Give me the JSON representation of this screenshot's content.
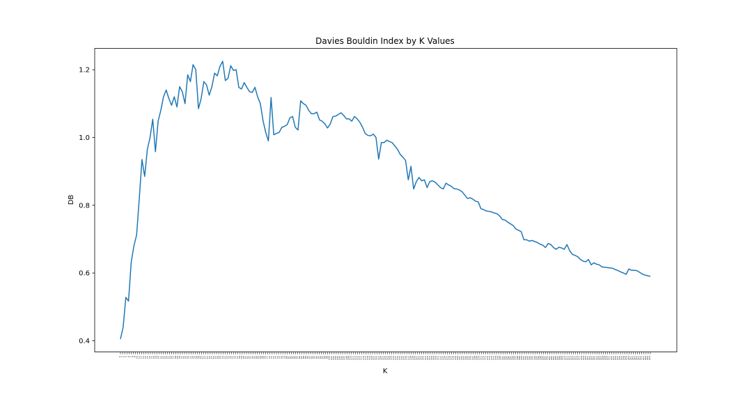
{
  "chart_data": {
    "type": "line",
    "title": "Davies Bouldin Index by K Values",
    "xlabel": "K",
    "ylabel": "DB",
    "x_start": 2,
    "x_end": 250,
    "ylim": [
      0.367,
      1.263
    ],
    "yticks": [
      0.4,
      0.6,
      0.8,
      1.0,
      1.2
    ],
    "ytick_labels": [
      "0.4",
      "0.6",
      "0.8",
      "1.0",
      "1.2"
    ],
    "grid": false,
    "legend": "none",
    "series": [
      {
        "color": "#1f77b4",
        "values": [
          0.405,
          0.44,
          0.528,
          0.517,
          0.632,
          0.68,
          0.712,
          0.82,
          0.935,
          0.885,
          0.965,
          1.0,
          1.054,
          0.958,
          1.048,
          1.08,
          1.12,
          1.14,
          1.115,
          1.095,
          1.12,
          1.09,
          1.15,
          1.135,
          1.1,
          1.185,
          1.165,
          1.215,
          1.2,
          1.085,
          1.115,
          1.165,
          1.155,
          1.125,
          1.15,
          1.19,
          1.182,
          1.21,
          1.225,
          1.168,
          1.175,
          1.212,
          1.198,
          1.2,
          1.148,
          1.143,
          1.162,
          1.148,
          1.135,
          1.133,
          1.148,
          1.12,
          1.1,
          1.05,
          1.015,
          0.99,
          1.118,
          1.008,
          1.012,
          1.015,
          1.03,
          1.033,
          1.038,
          1.058,
          1.062,
          1.03,
          1.022,
          1.108,
          1.1,
          1.095,
          1.08,
          1.07,
          1.07,
          1.075,
          1.052,
          1.048,
          1.04,
          1.028,
          1.04,
          1.062,
          1.063,
          1.068,
          1.073,
          1.065,
          1.055,
          1.055,
          1.048,
          1.062,
          1.055,
          1.045,
          1.03,
          1.012,
          1.006,
          1.005,
          1.01,
          1.0,
          0.936,
          0.985,
          0.985,
          0.992,
          0.988,
          0.985,
          0.975,
          0.965,
          0.95,
          0.942,
          0.932,
          0.875,
          0.915,
          0.848,
          0.87,
          0.882,
          0.872,
          0.875,
          0.852,
          0.87,
          0.872,
          0.868,
          0.86,
          0.852,
          0.848,
          0.865,
          0.86,
          0.856,
          0.849,
          0.848,
          0.845,
          0.84,
          0.83,
          0.82,
          0.822,
          0.818,
          0.812,
          0.81,
          0.79,
          0.787,
          0.783,
          0.782,
          0.78,
          0.777,
          0.775,
          0.768,
          0.758,
          0.756,
          0.75,
          0.745,
          0.74,
          0.73,
          0.726,
          0.722,
          0.698,
          0.698,
          0.694,
          0.696,
          0.693,
          0.69,
          0.685,
          0.682,
          0.675,
          0.687,
          0.684,
          0.675,
          0.67,
          0.676,
          0.674,
          0.67,
          0.684,
          0.666,
          0.655,
          0.652,
          0.648,
          0.64,
          0.635,
          0.633,
          0.64,
          0.624,
          0.63,
          0.626,
          0.624,
          0.618,
          0.617,
          0.616,
          0.615,
          0.614,
          0.61,
          0.607,
          0.603,
          0.6,
          0.596,
          0.612,
          0.608,
          0.608,
          0.607,
          0.602,
          0.597,
          0.594,
          0.592,
          0.59
        ]
      }
    ]
  }
}
